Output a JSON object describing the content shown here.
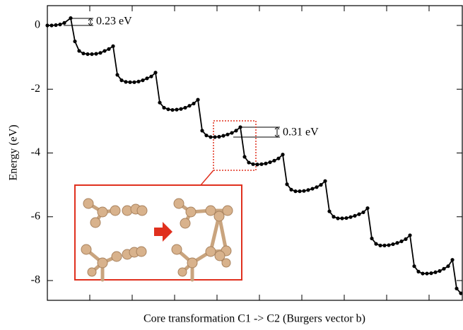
{
  "chart_data": {
    "type": "line",
    "x_label": "Core transformation C1 -> C2 (Burgers vector b)",
    "y_label": "Energy (eV)",
    "annotations": [
      "0.23 eV",
      "0.31 eV"
    ],
    "color": "#000000",
    "x": [
      0,
      1,
      2,
      3,
      4,
      5.5,
      6.5,
      7.5,
      8.5,
      9.5,
      10.5,
      11.5,
      12.5,
      13.5,
      14.5,
      15.5,
      16.5,
      17.5,
      18.5,
      19.5,
      20.5,
      21.5,
      22.5,
      23.5,
      24.5,
      25.5,
      26.5,
      27.5,
      28.5,
      29.5,
      30.5,
      31.5,
      32.5,
      33.5,
      34.5,
      35.5,
      36.5,
      37.5,
      38.5,
      39.5,
      40.5,
      41.5,
      42.5,
      43.5,
      44.5,
      45.5,
      46.5,
      47.5,
      48.5,
      49.5,
      50.5,
      51.5,
      52.5,
      53.5,
      54.5,
      55.5,
      56.5,
      57.5,
      58.5,
      59.5,
      60.5,
      61.5,
      62.5,
      63.5,
      64.5,
      65.5,
      66.5,
      67.5,
      68.5,
      69.5,
      70.5,
      71.5,
      72.5,
      73.5,
      74.5,
      75.5,
      76.5,
      77.5,
      78.5,
      79.5,
      80.5,
      81.5,
      82.5,
      83.5,
      84.5,
      85.5,
      86.5,
      87.5,
      88.5,
      89.5,
      90.5,
      91.5,
      92.5,
      93.5,
      94.5,
      95.5,
      96.5,
      97.5
    ],
    "values": [
      0,
      0,
      0.01,
      0.03,
      0.08,
      0.23,
      -0.5,
      -0.8,
      -0.88,
      -0.9,
      -0.9,
      -0.89,
      -0.86,
      -0.8,
      -0.74,
      -0.65,
      -1.55,
      -1.72,
      -1.77,
      -1.78,
      -1.78,
      -1.76,
      -1.72,
      -1.66,
      -1.6,
      -1.48,
      -2.42,
      -2.58,
      -2.63,
      -2.65,
      -2.64,
      -2.62,
      -2.58,
      -2.52,
      -2.45,
      -2.33,
      -3.3,
      -3.45,
      -3.5,
      -3.5,
      -3.49,
      -3.46,
      -3.42,
      -3.37,
      -3.3,
      -3.19,
      -4.12,
      -4.3,
      -4.35,
      -4.36,
      -4.35,
      -4.33,
      -4.29,
      -4.24,
      -4.17,
      -4.05,
      -4.98,
      -5.15,
      -5.2,
      -5.2,
      -5.19,
      -5.16,
      -5.12,
      -5.07,
      -5,
      -4.88,
      -5.83,
      -6,
      -6.05,
      -6.05,
      -6.04,
      -6.01,
      -5.97,
      -5.92,
      -5.86,
      -5.73,
      -6.68,
      -6.85,
      -6.9,
      -6.9,
      -6.89,
      -6.86,
      -6.82,
      -6.77,
      -6.7,
      -6.58,
      -7.55,
      -7.72,
      -7.78,
      -7.78,
      -7.77,
      -7.74,
      -7.7,
      -7.63,
      -7.55,
      -7.35,
      -8.25,
      -8.4
    ],
    "xlim": [
      0,
      98
    ],
    "xticks": [
      10,
      20,
      30,
      40,
      50,
      60,
      70,
      80,
      90
    ],
    "ylim": [
      -8.62,
      0.62
    ],
    "yticks": [
      0,
      -2,
      -4,
      -6,
      -8
    ]
  }
}
